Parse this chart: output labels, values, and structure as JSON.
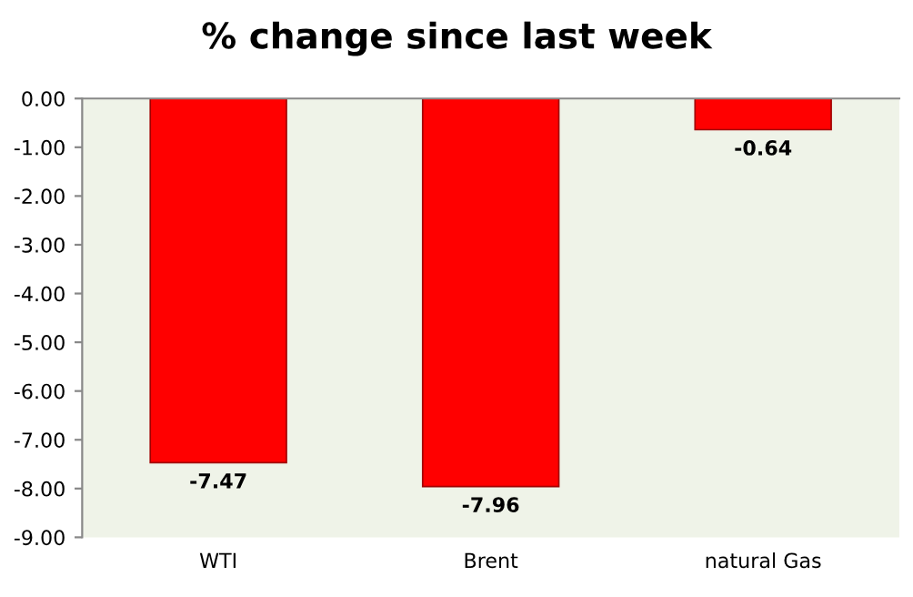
{
  "chart_data": {
    "type": "bar",
    "title": "% change since last week",
    "categories": [
      "WTI",
      "Brent",
      "natural Gas"
    ],
    "values": [
      -7.47,
      -7.96,
      -0.64
    ],
    "color": "#ff0000",
    "ylim": [
      -9,
      0
    ],
    "yticks": [
      {
        "value": 0,
        "label": "0.00"
      },
      {
        "value": -1,
        "label": "-1.00"
      },
      {
        "value": -2,
        "label": "-2.00"
      },
      {
        "value": -3,
        "label": "-3.00"
      },
      {
        "value": -4,
        "label": "-4.00"
      },
      {
        "value": -5,
        "label": "-5.00"
      },
      {
        "value": -6,
        "label": "-6.00"
      },
      {
        "value": -7,
        "label": "-7.00"
      },
      {
        "value": -8,
        "label": "-8.00"
      },
      {
        "value": -9,
        "label": "-9.00"
      }
    ],
    "data_labels": true,
    "grid": false,
    "legend": false
  }
}
